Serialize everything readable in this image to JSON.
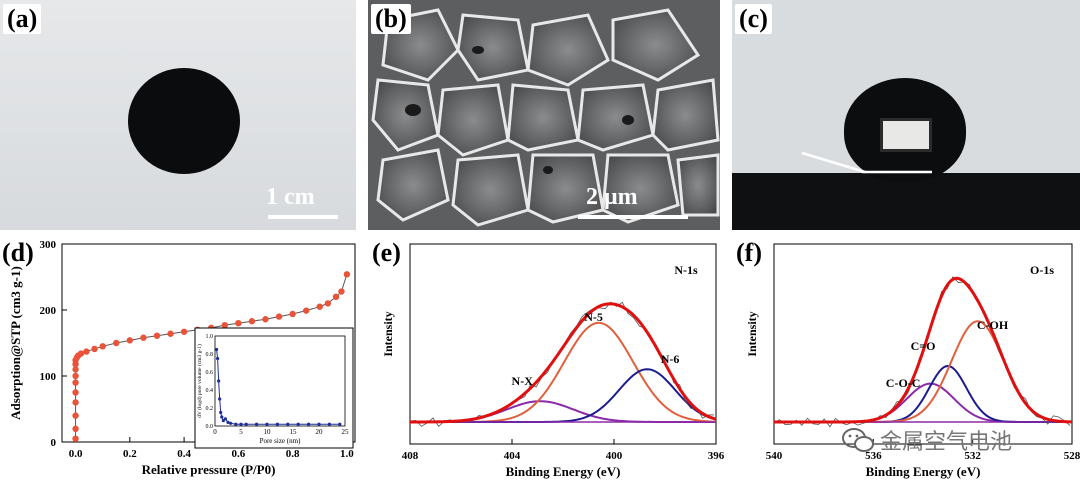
{
  "panels": {
    "a": {
      "label": "(a)",
      "scalebar": "1 cm"
    },
    "b": {
      "label": "(b)",
      "scalebar": "2 μm"
    },
    "c": {
      "label": "(c)"
    },
    "d": {
      "label": "(d)"
    },
    "e": {
      "label": "(e)"
    },
    "f": {
      "label": "(f)"
    }
  },
  "watermark": {
    "text": "金属空气电池",
    "icon": "wechat-icon"
  },
  "chart_data": [
    {
      "id": "d",
      "type": "scatter",
      "xlabel": "Relative pressure (P/P0)",
      "ylabel": "Adsorption@STP (cm3 g-1)",
      "xlim": [
        -0.05,
        1.03
      ],
      "ylim": [
        0,
        300
      ],
      "xticks": [
        "0.0",
        "0.2",
        "0.4",
        "0.6",
        "0.8",
        "1.0"
      ],
      "yticks": [
        "0",
        "100",
        "200",
        "300"
      ],
      "color": "#e8533a",
      "series": [
        {
          "x": [
            0.0,
            0.0,
            0.0,
            0.0,
            0.0,
            0.0,
            0.0,
            0.0,
            0.0,
            0.0,
            0.005,
            0.01,
            0.02,
            0.04,
            0.07,
            0.1,
            0.15,
            0.2,
            0.25,
            0.3,
            0.35,
            0.4,
            0.45,
            0.5,
            0.55,
            0.6,
            0.65,
            0.7,
            0.75,
            0.8,
            0.85,
            0.9,
            0.93,
            0.96,
            0.98,
            1.0
          ],
          "y": [
            5,
            20,
            40,
            60,
            75,
            90,
            100,
            110,
            118,
            124,
            128,
            131,
            134,
            137,
            141,
            145,
            150,
            154,
            158,
            161,
            164,
            167,
            170,
            173,
            177,
            180,
            183,
            186,
            190,
            194,
            199,
            205,
            210,
            220,
            228,
            254
          ]
        }
      ],
      "inset": {
        "type": "scatter",
        "xlabel": "Pore size (nm)",
        "ylabel": "dV (logd) pore volume (cm3 g-1)",
        "xlim": [
          0,
          25
        ],
        "ylim": [
          0,
          1.0
        ],
        "xticks": [
          "0",
          "5",
          "10",
          "15",
          "20",
          "25"
        ],
        "yticks": [
          "0.0",
          "0.2",
          "0.4",
          "0.6",
          "0.8",
          "1.0"
        ],
        "color": "#1f2f9a",
        "x": [
          0.3,
          0.5,
          0.7,
          0.9,
          1.1,
          1.3,
          1.6,
          2.0,
          2.5,
          3.0,
          4,
          5,
          6,
          8,
          10,
          12,
          14,
          16,
          18,
          20,
          22,
          24
        ],
        "y": [
          0.85,
          0.75,
          0.5,
          0.3,
          0.15,
          0.1,
          0.06,
          0.08,
          0.04,
          0.03,
          0.02,
          0.02,
          0.02,
          0.02,
          0.02,
          0.02,
          0.02,
          0.02,
          0.02,
          0.02,
          0.02,
          0.02
        ]
      }
    },
    {
      "id": "e",
      "type": "line",
      "title": "N-1s",
      "xlabel": "Binding Energy (eV)",
      "ylabel": "Intensity",
      "xlim": [
        408,
        396
      ],
      "xticks": [
        "408",
        "404",
        "400",
        "396"
      ],
      "peaks": [
        {
          "name": "N-X",
          "center": 402.9,
          "height": 0.13,
          "width": 1.3,
          "color": "#8b2aa8"
        },
        {
          "name": "N-5",
          "center": 400.6,
          "height": 0.62,
          "width": 1.35,
          "color": "#e0603e"
        },
        {
          "name": "N-6",
          "center": 398.7,
          "height": 0.33,
          "width": 1.1,
          "color": "#1c1c8f"
        }
      ],
      "envelope_color": "#e01010",
      "raw_color": "#555555"
    },
    {
      "id": "f",
      "type": "line",
      "title": "O-1s",
      "xlabel": "Binding Energy (eV)",
      "ylabel": "Intensity",
      "xlim": [
        540,
        528
      ],
      "xticks": [
        "540",
        "536",
        "532",
        "528"
      ],
      "peaks": [
        {
          "name": "C-O-C",
          "center": 533.7,
          "height": 0.24,
          "width": 0.95,
          "color": "#8b2aa8"
        },
        {
          "name": "C=O",
          "center": 533.0,
          "height": 0.35,
          "width": 0.75,
          "color": "#1c1c8f"
        },
        {
          "name": "C-OH",
          "center": 531.8,
          "height": 0.63,
          "width": 1.05,
          "color": "#e0603e"
        }
      ],
      "envelope_color": "#e01010",
      "raw_color": "#555555"
    }
  ]
}
